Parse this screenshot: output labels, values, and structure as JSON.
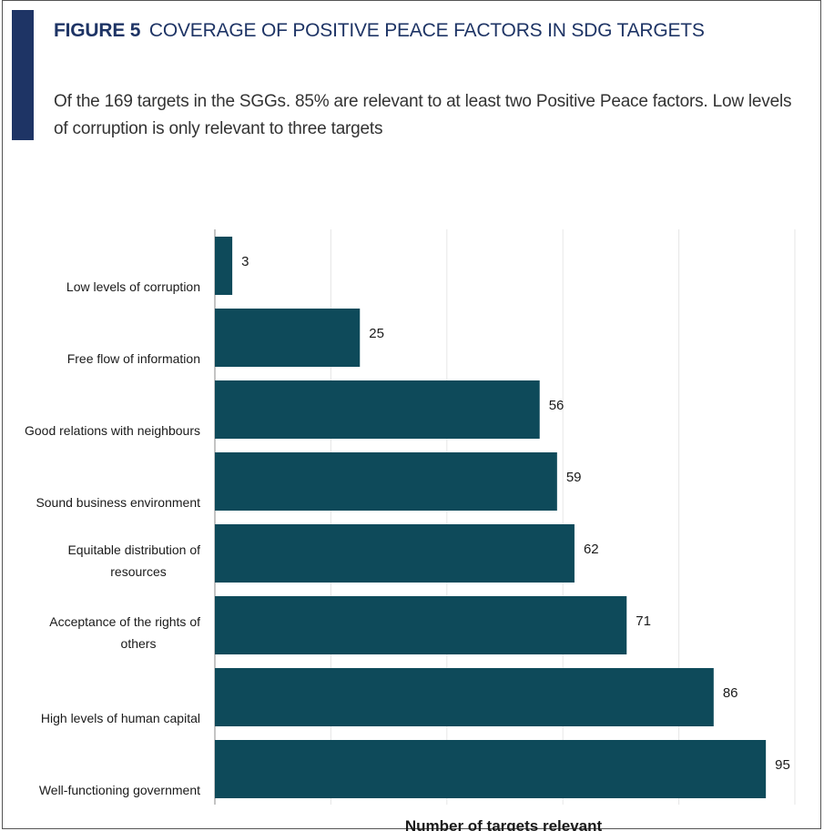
{
  "header": {
    "figure_label": "FIGURE 5",
    "title": "COVERAGE OF POSITIVE PEACE FACTORS IN SDG TARGETS",
    "subtitle": "Of the 169 targets in the SGGs. 85% are relevant to at least two Positive Peace factors. Low levels of corruption is only relevant to three targets",
    "accent_color": "#1e3465"
  },
  "chart_data": {
    "type": "bar",
    "orientation": "horizontal",
    "categories": [
      [
        "Low levels of corruption"
      ],
      [
        "Free flow of information"
      ],
      [
        "Good relations with neighbours"
      ],
      [
        "Sound business environment"
      ],
      [
        "Equitable distribution of",
        "resources"
      ],
      [
        "Acceptance of the rights of",
        "others"
      ],
      [
        "High levels of human capital"
      ],
      [
        "Well-functioning government"
      ]
    ],
    "values": [
      3,
      25,
      56,
      59,
      62,
      71,
      86,
      95
    ],
    "xlabel": "Number of targets relevant",
    "ylabel": "",
    "xlim": [
      0,
      100
    ],
    "grid": true,
    "bar_color": "#0e4a5a",
    "grid_color": "#e6e6e6",
    "axis_color": "#b0b0b0"
  }
}
